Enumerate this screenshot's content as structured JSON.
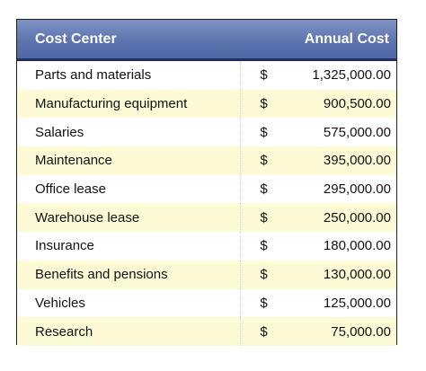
{
  "header": {
    "cost_center": "Cost Center",
    "annual_cost": "Annual Cost"
  },
  "rows": [
    {
      "name": "Parts and materials",
      "currency": "$",
      "amount": "1,325,000.00"
    },
    {
      "name": "Manufacturing equipment",
      "currency": "$",
      "amount": "900,500.00"
    },
    {
      "name": "Salaries",
      "currency": "$",
      "amount": "575,000.00"
    },
    {
      "name": "Maintenance",
      "currency": "$",
      "amount": "395,000.00"
    },
    {
      "name": "Office lease",
      "currency": "$",
      "amount": "295,000.00"
    },
    {
      "name": "Warehouse lease",
      "currency": "$",
      "amount": "250,000.00"
    },
    {
      "name": "Insurance",
      "currency": "$",
      "amount": "180,000.00"
    },
    {
      "name": "Benefits and pensions",
      "currency": "$",
      "amount": "130,000.00"
    },
    {
      "name": "Vehicles",
      "currency": "$",
      "amount": "125,000.00"
    },
    {
      "name": "Research",
      "currency": "$",
      "amount": "75,000.00"
    }
  ],
  "colors": {
    "header": "#5d74ae",
    "header_border": "#1f2f63",
    "alt_row": "#fdfbd6"
  }
}
